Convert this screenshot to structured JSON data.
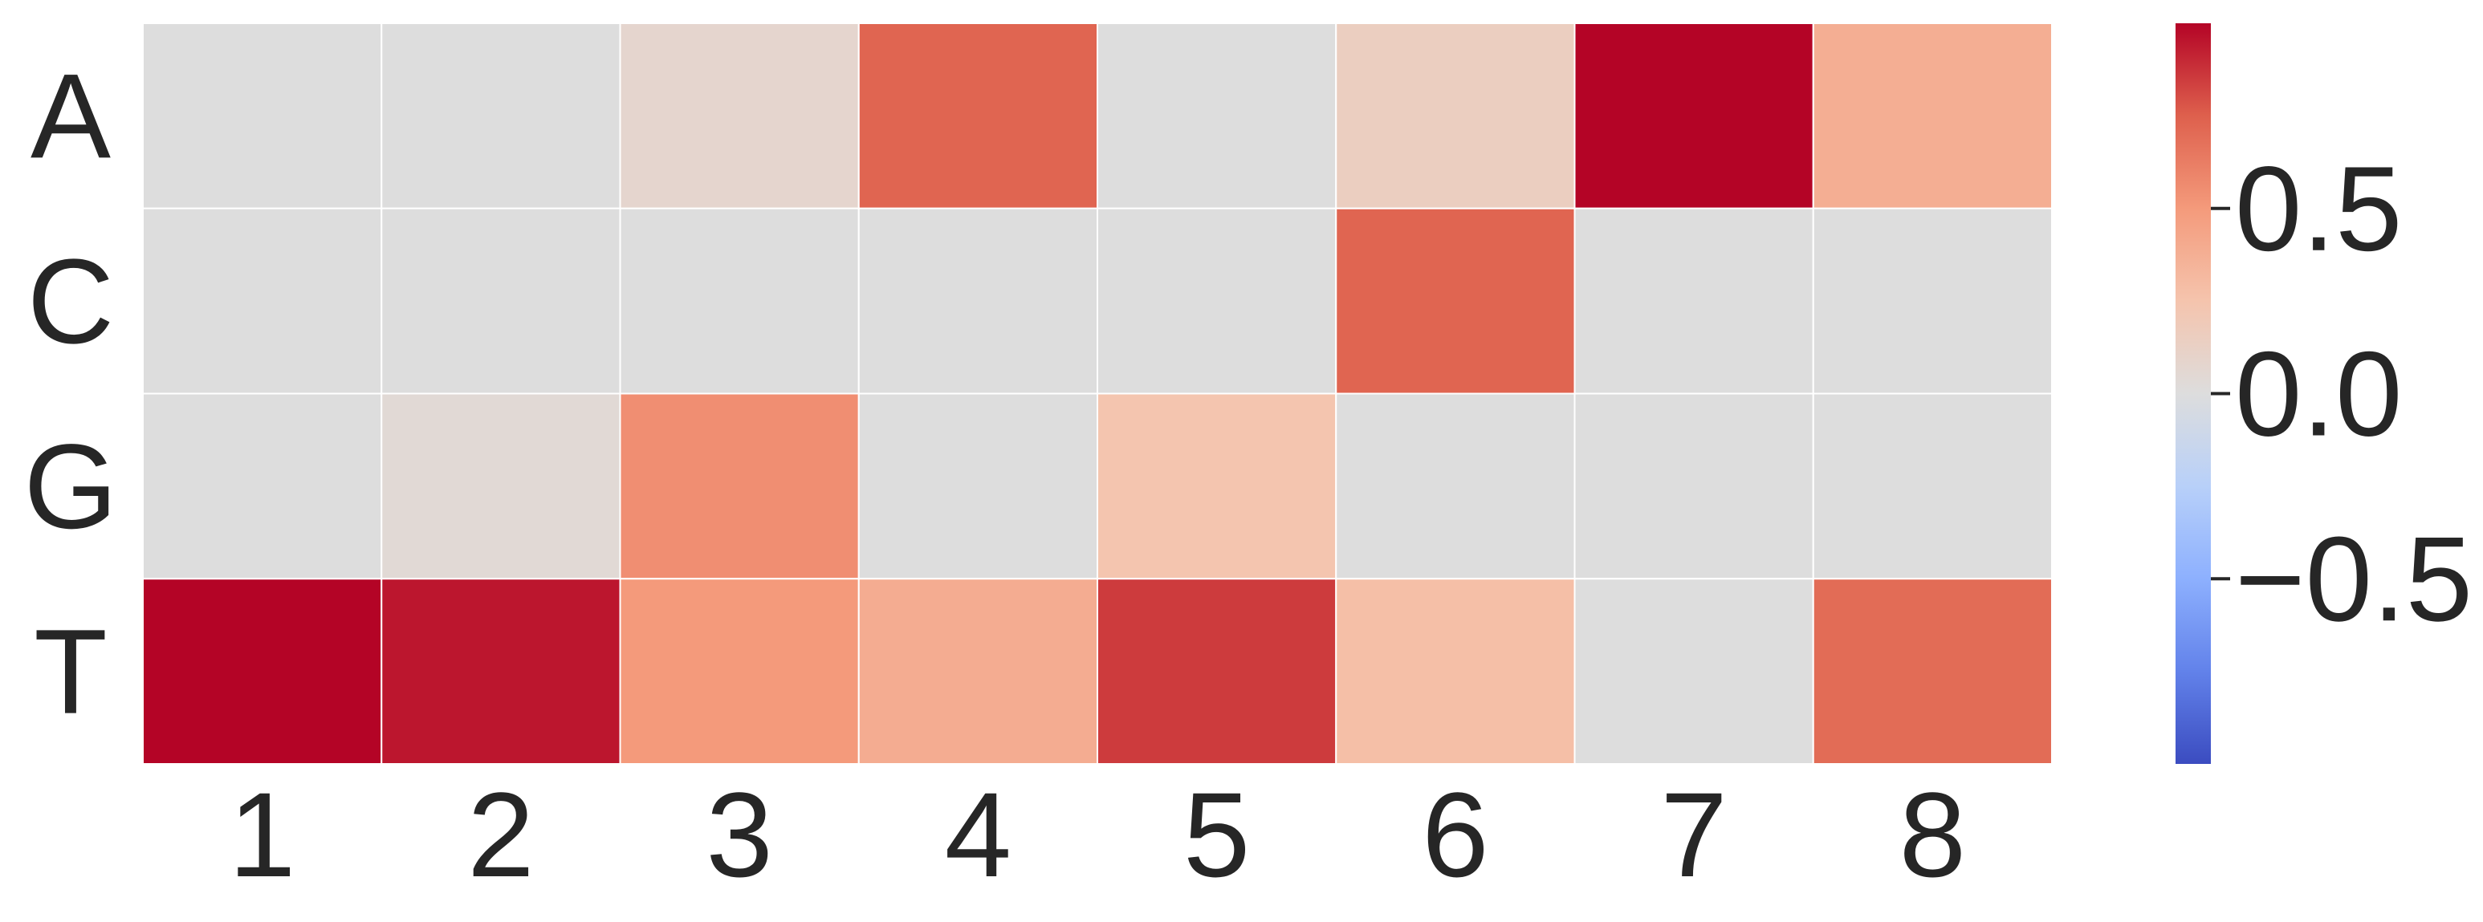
{
  "chart_data": {
    "type": "heatmap",
    "title": "",
    "xlabel": "",
    "ylabel": "",
    "rows": [
      "A",
      "C",
      "G",
      "T"
    ],
    "columns": [
      "1",
      "2",
      "3",
      "4",
      "5",
      "6",
      "7",
      "8"
    ],
    "values": [
      [
        0.0,
        0.0,
        0.08,
        0.73,
        0.0,
        0.15,
        1.0,
        0.38
      ],
      [
        0.0,
        0.0,
        0.0,
        0.0,
        0.0,
        0.73,
        0.0,
        0.0
      ],
      [
        0.0,
        0.04,
        0.55,
        0.0,
        0.24,
        0.0,
        0.0,
        0.0
      ],
      [
        1.0,
        0.95,
        0.5,
        0.39,
        0.85,
        0.28,
        0.0,
        0.7
      ]
    ],
    "colormap": "coolwarm",
    "vmin": -1.0,
    "vmax": 1.0,
    "grid_line_color": "#ffffff",
    "colorbar": {
      "ticks": [
        0.5,
        0.0,
        -0.5
      ],
      "tick_labels": [
        "0.5",
        "0.0",
        "−0.5"
      ]
    }
  }
}
